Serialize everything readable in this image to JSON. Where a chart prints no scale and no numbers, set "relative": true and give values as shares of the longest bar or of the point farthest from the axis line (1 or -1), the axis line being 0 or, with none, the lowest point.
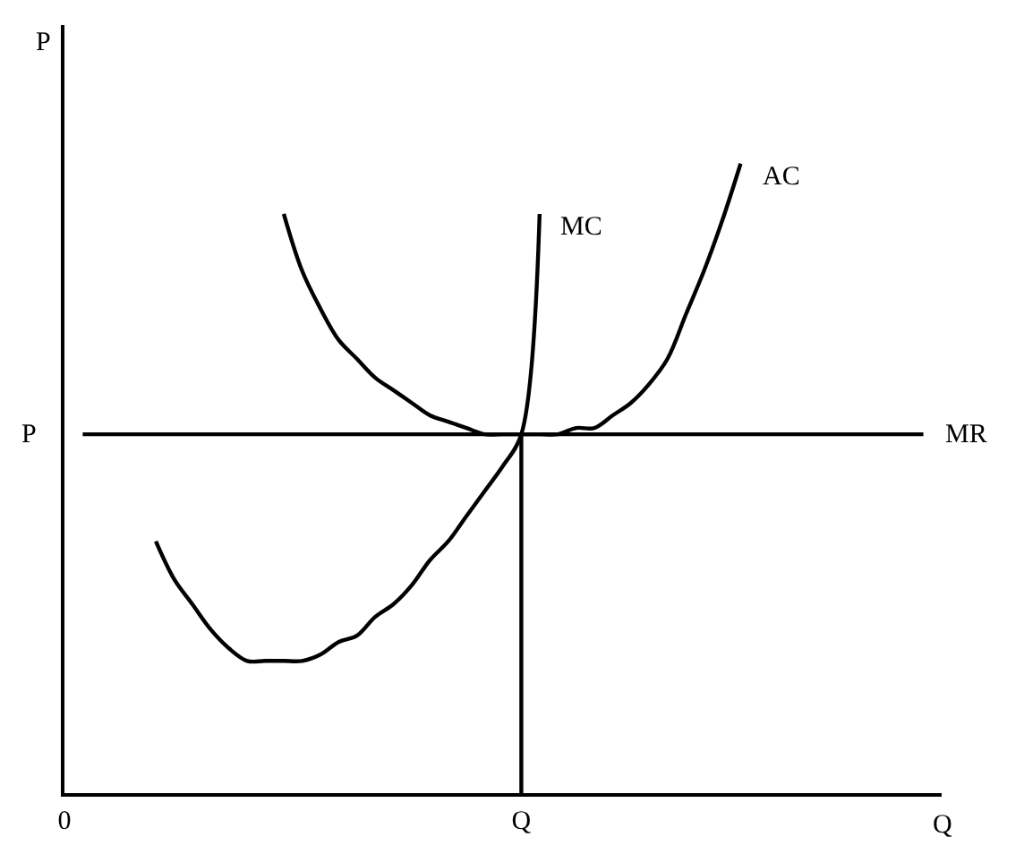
{
  "chart_data": {
    "type": "line",
    "relative": true,
    "xlabel": "Q",
    "ylabel": "P",
    "legend": false,
    "grid": false,
    "marker": "none",
    "line_style": "solid",
    "categories": [
      "0",
      null,
      null,
      null,
      null,
      null,
      null,
      null,
      null,
      null,
      null,
      null,
      null,
      null,
      null,
      null,
      null,
      null,
      null,
      null,
      null,
      null,
      null,
      null,
      null,
      "Q",
      null,
      null,
      null,
      null,
      null,
      null,
      null,
      null,
      null,
      null,
      null,
      null,
      null,
      null,
      null,
      null,
      null,
      null,
      null,
      null,
      null,
      null
    ],
    "series": [
      {
        "name": "MC",
        "color": "#000000",
        "values": [
          null,
          null,
          null,
          null,
          null,
          0.4,
          0.34,
          0.3,
          0.26,
          0.23,
          0.21,
          0.21,
          0.21,
          0.21,
          0.22,
          0.24,
          0.25,
          0.28,
          0.3,
          0.33,
          0.37,
          0.4,
          0.44,
          0.48,
          0.52,
          0.57,
          0.92,
          null,
          null,
          null,
          null,
          null,
          null,
          null,
          null,
          null,
          null,
          null,
          null,
          null,
          null,
          null,
          null,
          null,
          null,
          null,
          null,
          null
        ]
      },
      {
        "name": "AC",
        "color": "#000000",
        "values": [
          null,
          null,
          null,
          null,
          null,
          null,
          null,
          null,
          null,
          null,
          null,
          null,
          0.92,
          0.83,
          0.77,
          0.72,
          0.69,
          0.66,
          0.64,
          0.62,
          0.6,
          0.59,
          0.58,
          0.57,
          0.57,
          0.57,
          0.57,
          0.57,
          0.58,
          0.58,
          0.6,
          0.62,
          0.65,
          0.69,
          0.76,
          0.83,
          0.91,
          1.0,
          null,
          null,
          null,
          null,
          null,
          null,
          null,
          null,
          null,
          null
        ]
      },
      {
        "name": "MR",
        "color": "#000000",
        "values": [
          null,
          0.57,
          0.57,
          0.57,
          0.57,
          0.57,
          0.57,
          0.57,
          0.57,
          0.57,
          0.57,
          0.57,
          0.57,
          0.57,
          0.57,
          0.57,
          0.57,
          0.57,
          0.57,
          0.57,
          0.57,
          0.57,
          0.57,
          0.57,
          0.57,
          0.57,
          0.57,
          0.57,
          0.57,
          0.57,
          0.57,
          0.57,
          0.57,
          0.57,
          0.57,
          0.57,
          0.57,
          0.57,
          0.57,
          0.57,
          0.57,
          0.57,
          0.57,
          0.57,
          0.57,
          0.57,
          0.57,
          0.57
        ]
      },
      {
        "color": "#000000",
        "x": [
          "Q",
          "Q"
        ],
        "values": [
          0,
          0.57
        ]
      }
    ],
    "annotations": [
      "P"
    ]
  }
}
